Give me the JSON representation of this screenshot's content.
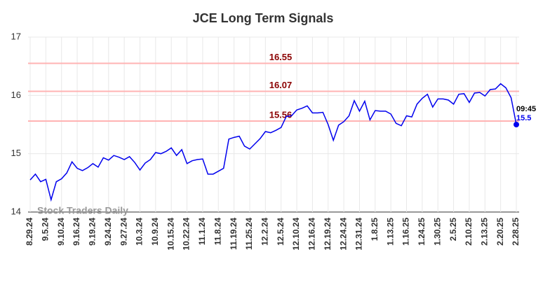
{
  "chart_data": {
    "type": "line",
    "title": "JCE Long Term Signals",
    "categories": [
      "8.29.24",
      null,
      null,
      "9.5.24",
      null,
      null,
      "9.10.24",
      null,
      null,
      "9.16.24",
      null,
      null,
      "9.19.24",
      null,
      null,
      "9.24.24",
      null,
      null,
      "9.27.24",
      null,
      null,
      "10.3.24",
      null,
      null,
      "10.9.24",
      null,
      null,
      "10.15.24",
      null,
      null,
      "10.22.24",
      null,
      null,
      "11.1.24",
      null,
      null,
      "11.8.24",
      null,
      null,
      "11.19.24",
      null,
      null,
      "11.25.24",
      null,
      null,
      "12.2.24",
      null,
      null,
      "12.5.24",
      null,
      null,
      "12.10.24",
      null,
      null,
      "12.16.24",
      null,
      null,
      "12.19.24",
      null,
      null,
      "12.24.24",
      null,
      null,
      "12.31.24",
      null,
      null,
      "1.8.25",
      null,
      null,
      "1.13.25",
      null,
      null,
      "1.16.25",
      null,
      null,
      "1.24.25",
      null,
      null,
      "1.30.25",
      null,
      null,
      "2.5.25",
      null,
      null,
      "2.10.25",
      null,
      null,
      "2.13.25",
      null,
      null,
      "2.20.25",
      null,
      null,
      "2.28.25"
    ],
    "series": [
      {
        "color": "#0000ee",
        "values": [
          14.55,
          14.65,
          14.52,
          14.56,
          14.21,
          14.52,
          14.57,
          14.67,
          14.86,
          14.75,
          14.71,
          14.76,
          14.83,
          14.77,
          14.93,
          14.89,
          14.97,
          14.94,
          14.9,
          14.95,
          14.85,
          14.72,
          14.84,
          14.9,
          15.02,
          15.0,
          15.04,
          15.1,
          14.97,
          15.07,
          14.83,
          14.88,
          14.9,
          14.91,
          14.65,
          14.65,
          14.7,
          14.75,
          15.25,
          15.28,
          15.3,
          15.13,
          15.08,
          15.17,
          15.26,
          15.38,
          15.36,
          15.4,
          15.45,
          15.64,
          15.65,
          15.75,
          15.78,
          15.82,
          15.7,
          15.7,
          15.71,
          15.5,
          15.23,
          15.49,
          15.55,
          15.65,
          15.91,
          15.73,
          15.9,
          15.58,
          15.74,
          15.73,
          15.73,
          15.68,
          15.52,
          15.48,
          15.65,
          15.63,
          15.85,
          15.95,
          16.02,
          15.8,
          15.94,
          15.94,
          15.92,
          15.85,
          16.02,
          16.03,
          15.88,
          16.04,
          16.05,
          15.99,
          16.1,
          16.11,
          16.2,
          16.13,
          15.96,
          15.5
        ]
      }
    ],
    "hlines": [
      16.55,
      16.07,
      15.56
    ],
    "hline_color": "#ffb3b3",
    "hline_label_color": "#8b0000",
    "last_time": "09:45",
    "watermark": "Stock Traders Daily",
    "ylim": [
      14,
      17
    ],
    "yticks": [
      14,
      15,
      16,
      17
    ],
    "grid": true
  }
}
